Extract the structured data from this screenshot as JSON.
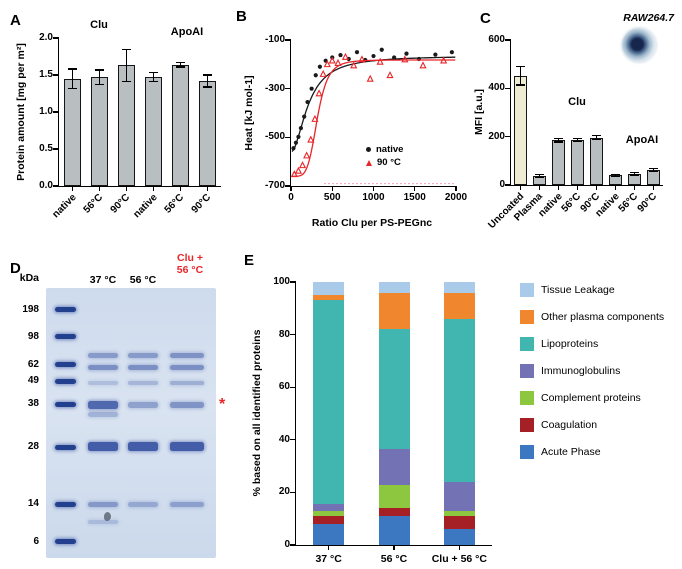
{
  "panels": {
    "a": {
      "letter": "A"
    },
    "b": {
      "letter": "B"
    },
    "c": {
      "letter": "C"
    },
    "d": {
      "letter": "D",
      "kda_label": "kDa",
      "lane1_label": "37 °C",
      "lane2_label": "56 °C",
      "lane3_label_line1": "Clu +",
      "lane3_label_line2": "56 °C",
      "lane3_label_color": "#e8262a",
      "asterisk": "*",
      "asterisk_color": "#e8262a",
      "ladder_kda": [
        198,
        98,
        62,
        49,
        38,
        28,
        14,
        6
      ],
      "ladder_fracs": [
        0.08,
        0.18,
        0.285,
        0.345,
        0.43,
        0.59,
        0.8,
        0.94
      ],
      "gel_bands": {
        "lane_37": [
          [
            0.25,
            0.45,
            5
          ],
          [
            0.296,
            0.52,
            5
          ],
          [
            0.35,
            0.22,
            4
          ],
          [
            0.432,
            0.78,
            8
          ],
          [
            0.47,
            0.3,
            5
          ],
          [
            0.588,
            0.85,
            9
          ],
          [
            0.8,
            0.45,
            5
          ],
          [
            0.868,
            0.22,
            4
          ]
        ],
        "lane_56": [
          [
            0.25,
            0.45,
            5
          ],
          [
            0.296,
            0.52,
            5
          ],
          [
            0.35,
            0.28,
            4
          ],
          [
            0.432,
            0.42,
            6
          ],
          [
            0.588,
            0.85,
            9
          ],
          [
            0.8,
            0.35,
            5
          ]
        ],
        "lane_clu56": [
          [
            0.25,
            0.5,
            5
          ],
          [
            0.296,
            0.52,
            5
          ],
          [
            0.35,
            0.32,
            4
          ],
          [
            0.432,
            0.5,
            6
          ],
          [
            0.588,
            0.85,
            9
          ],
          [
            0.8,
            0.4,
            5
          ]
        ]
      }
    },
    "e": {
      "letter": "E"
    }
  },
  "chart_data": [
    {
      "id": "panel-a",
      "type": "bar",
      "ylabel": "Protein amount [mg per m²]",
      "categories": [
        "native",
        "56°C",
        "90°C",
        "native",
        "56°C",
        "90°C"
      ],
      "values": [
        1.45,
        1.47,
        1.63,
        1.47,
        1.64,
        1.42
      ],
      "errors": [
        0.13,
        0.1,
        0.22,
        0.06,
        0.03,
        0.08
      ],
      "group_labels": [
        "Clu",
        "ApoAI"
      ],
      "ylim": [
        0,
        2.0
      ],
      "yticks": [
        "0.0",
        "0.5",
        "1.0",
        "1.5",
        "2.0"
      ],
      "bar_color": "#b9bfc1",
      "grid": false
    },
    {
      "id": "panel-b",
      "type": "scatter",
      "xlabel": "Ratio Clu per PS-PEGnc",
      "ylabel": "Heat [kJ mol-1]",
      "xlim": [
        0,
        2000
      ],
      "ylim": [
        -700,
        -100
      ],
      "xticks": [
        0,
        500,
        1000,
        1500,
        2000
      ],
      "yticks": [
        -100,
        -300,
        -500,
        -700
      ],
      "legend_position": "center-right",
      "series": [
        {
          "name": "native",
          "marker": "circle",
          "color": "#1a1a1a",
          "x": [
            30,
            60,
            90,
            120,
            160,
            200,
            250,
            300,
            350,
            420,
            500,
            600,
            700,
            800,
            900,
            1000,
            1100,
            1250,
            1400,
            1550,
            1750,
            1950
          ],
          "y": [
            -545,
            -522,
            -498,
            -462,
            -415,
            -355,
            -300,
            -245,
            -210,
            -185,
            -172,
            -162,
            -178,
            -150,
            -182,
            -166,
            -140,
            -172,
            -156,
            -178,
            -160,
            -150
          ],
          "fit": {
            "start": -560,
            "plateau": -165,
            "x0": 215,
            "n": 1.9
          }
        },
        {
          "name": "90 °C",
          "marker": "triangle",
          "color": "#e8262a",
          "x": [
            40,
            90,
            140,
            190,
            240,
            290,
            340,
            390,
            440,
            500,
            570,
            660,
            760,
            860,
            960,
            1080,
            1200,
            1380,
            1600,
            1850
          ],
          "y": [
            -652,
            -638,
            -615,
            -575,
            -510,
            -425,
            -320,
            -240,
            -200,
            -185,
            -195,
            -170,
            -205,
            -180,
            -260,
            -190,
            -245,
            -180,
            -205,
            -185
          ],
          "fit": {
            "start": -660,
            "plateau": -182,
            "x0": 320,
            "n": 5.0
          }
        }
      ],
      "baseline": {
        "y": -690,
        "x_start": 400,
        "x_end": 2000,
        "color": "#f2a0c0"
      }
    },
    {
      "id": "panel-c",
      "type": "bar",
      "ylabel": "MFI [a.u.]",
      "annotation": "RAW264.7",
      "categories": [
        "Uncoated",
        "Plasma",
        "native",
        "56°C",
        "90°C",
        "native",
        "56°C",
        "90°C"
      ],
      "values": [
        452,
        38,
        186,
        186,
        196,
        40,
        46,
        62
      ],
      "errors": [
        38,
        6,
        8,
        6,
        8,
        5,
        5,
        6
      ],
      "bar_colors": [
        "#eeedd3",
        "#b9bfc1",
        "#b9bfc1",
        "#b9bfc1",
        "#b9bfc1",
        "#b9bfc1",
        "#b9bfc1",
        "#b9bfc1"
      ],
      "group_labels": [
        "Clu",
        "ApoAI"
      ],
      "ylim": [
        0,
        600
      ],
      "yticks": [
        0,
        200,
        400,
        600
      ],
      "grid": false
    },
    {
      "id": "panel-e",
      "type": "stacked-bar",
      "ylabel": "% based on all identified proteins",
      "categories": [
        "37 °C",
        "56 °C",
        "Clu + 56 °C"
      ],
      "ylim": [
        0,
        100
      ],
      "yticks": [
        0,
        20,
        40,
        60,
        80,
        100
      ],
      "legend_position": "right",
      "series_bottom_to_top": [
        {
          "name": "Acute Phase",
          "color": "#3c77c2",
          "values": [
            8,
            11,
            6
          ]
        },
        {
          "name": "Coagulation",
          "color": "#a42025",
          "values": [
            3,
            3,
            5
          ]
        },
        {
          "name": "Complement proteins",
          "color": "#8dc63f",
          "pattern": "dots",
          "values": [
            2,
            9,
            2
          ]
        },
        {
          "name": "Immunoglobulins",
          "color": "#7372b5",
          "values": [
            2.5,
            13.5,
            11
          ]
        },
        {
          "name": "Lipoproteins",
          "color": "#41b6b0",
          "values": [
            77.5,
            45.5,
            62
          ]
        },
        {
          "name": "Other plasma components",
          "color": "#f0872f",
          "values": [
            2,
            14,
            10
          ]
        },
        {
          "name": "Tissue Leakage",
          "color": "#a9cbe9",
          "values": [
            5,
            4,
            4
          ]
        }
      ]
    }
  ]
}
